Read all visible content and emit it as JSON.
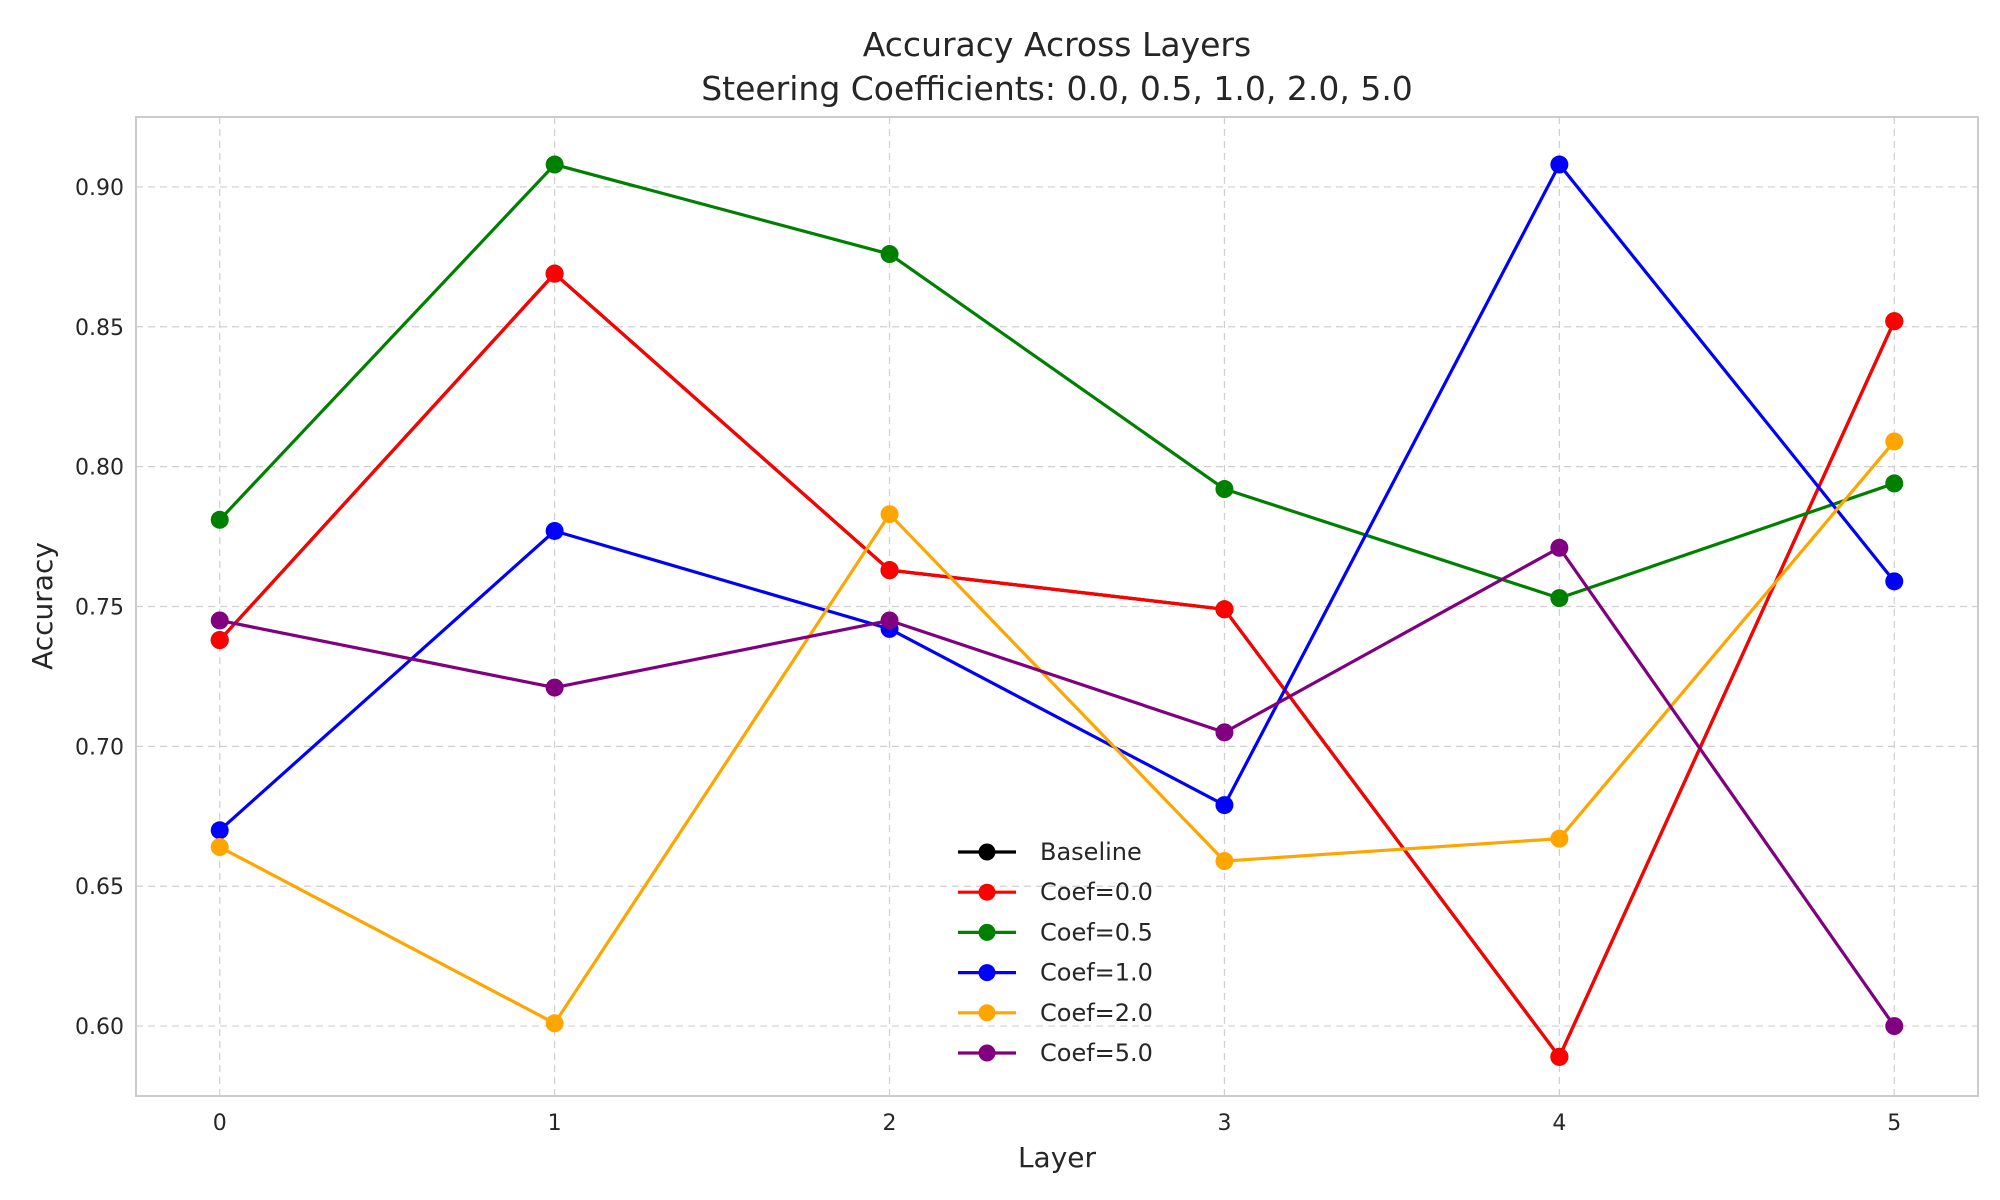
{
  "chart_data": {
    "type": "line",
    "title": "Accuracy Across Layers",
    "subtitle": "Steering Coefficients: 0.0, 0.5, 1.0, 2.0, 5.0",
    "xlabel": "Layer",
    "ylabel": "Accuracy",
    "x": [
      0,
      1,
      2,
      3,
      4,
      5
    ],
    "x_ticks": [
      "0",
      "1",
      "2",
      "3",
      "4",
      "5"
    ],
    "xlim": [
      -0.25,
      5.25
    ],
    "ylim": [
      0.575,
      0.925
    ],
    "y_ticks": [
      "0.60",
      "0.65",
      "0.70",
      "0.75",
      "0.80",
      "0.85",
      "0.90"
    ],
    "grid": true,
    "legend_position": "lower center",
    "series": [
      {
        "name": "Baseline",
        "color": "#000000",
        "values": [
          0.738,
          0.869,
          0.763,
          0.749,
          0.589,
          0.852
        ]
      },
      {
        "name": "Coef=0.0",
        "color": "#ff0000",
        "values": [
          0.738,
          0.869,
          0.763,
          0.749,
          0.589,
          0.852
        ]
      },
      {
        "name": "Coef=0.5",
        "color": "#008000",
        "values": [
          0.781,
          0.908,
          0.876,
          0.792,
          0.753,
          0.794
        ]
      },
      {
        "name": "Coef=1.0",
        "color": "#0000ff",
        "values": [
          0.67,
          0.777,
          0.742,
          0.679,
          0.908,
          0.759
        ]
      },
      {
        "name": "Coef=2.0",
        "color": "#ffa500",
        "values": [
          0.664,
          0.601,
          0.783,
          0.659,
          0.667,
          0.809
        ]
      },
      {
        "name": "Coef=5.0",
        "color": "#800080",
        "values": [
          0.745,
          0.721,
          0.745,
          0.705,
          0.771,
          0.6
        ]
      }
    ]
  }
}
